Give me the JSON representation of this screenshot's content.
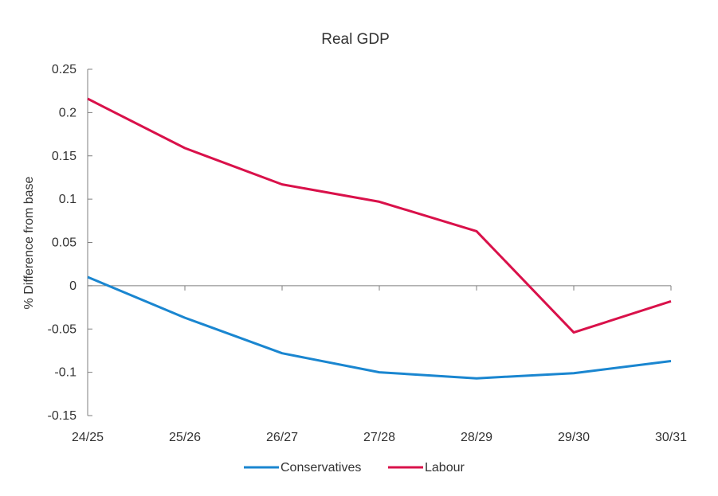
{
  "chart_data": {
    "type": "line",
    "title": "Real GDP",
    "xlabel": "",
    "ylabel": "% Difference from base",
    "categories": [
      "24/25",
      "25/26",
      "26/27",
      "27/28",
      "28/29",
      "29/30",
      "30/31"
    ],
    "ylim": [
      -0.15,
      0.25
    ],
    "yticks": [
      0.25,
      0.2,
      0.15,
      0.1,
      0.05,
      0,
      -0.05,
      -0.1,
      -0.15
    ],
    "ytick_labels": [
      "0.25",
      "0.2",
      "0.15",
      "0.1",
      "0.05",
      "0",
      "-0.05",
      "-0.1",
      "-0.15"
    ],
    "grid": false,
    "legend_position": "bottom",
    "series": [
      {
        "name": "Conservatives",
        "color": "#1a86d0",
        "values": [
          0.01,
          -0.037,
          -0.078,
          -0.1,
          -0.107,
          -0.101,
          -0.087
        ]
      },
      {
        "name": "Labour",
        "color": "#d9114a",
        "values": [
          0.216,
          0.159,
          0.117,
          0.097,
          0.063,
          -0.054,
          -0.018
        ]
      }
    ]
  }
}
